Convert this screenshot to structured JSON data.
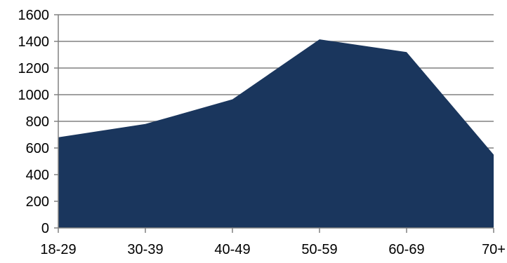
{
  "chart_data": {
    "type": "area",
    "categories": [
      "18-29",
      "30-39",
      "40-49",
      "50-59",
      "60-69",
      "70+"
    ],
    "series": [
      {
        "values": [
          680,
          780,
          965,
          1415,
          1320,
          550
        ],
        "color": "#1a365d"
      }
    ],
    "yticks": [
      "0",
      "200",
      "400",
      "600",
      "800",
      "1000",
      "1200",
      "1400",
      "1600"
    ],
    "ylim": [
      0,
      1600
    ],
    "grid": true,
    "grid_color": "#808080",
    "axis_color": "#808080",
    "legend": "none"
  }
}
